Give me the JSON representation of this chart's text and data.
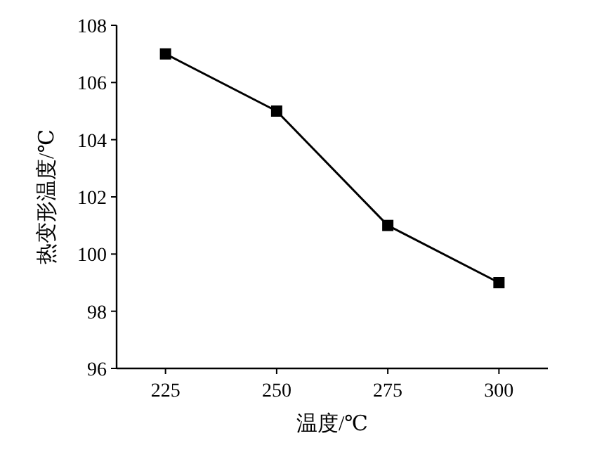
{
  "chart_data": {
    "type": "line",
    "xlabel": "温度/℃",
    "ylabel": "热变形温度/℃",
    "x": [
      225,
      250,
      275,
      300
    ],
    "values": [
      107,
      105,
      101,
      99
    ],
    "color": "#000000",
    "marker": "square",
    "xlim": [
      214,
      311
    ],
    "xticks": [
      225,
      250,
      275,
      300
    ],
    "ylim": [
      96,
      108
    ],
    "yticks": [
      96,
      98,
      100,
      102,
      104,
      106,
      108
    ]
  }
}
